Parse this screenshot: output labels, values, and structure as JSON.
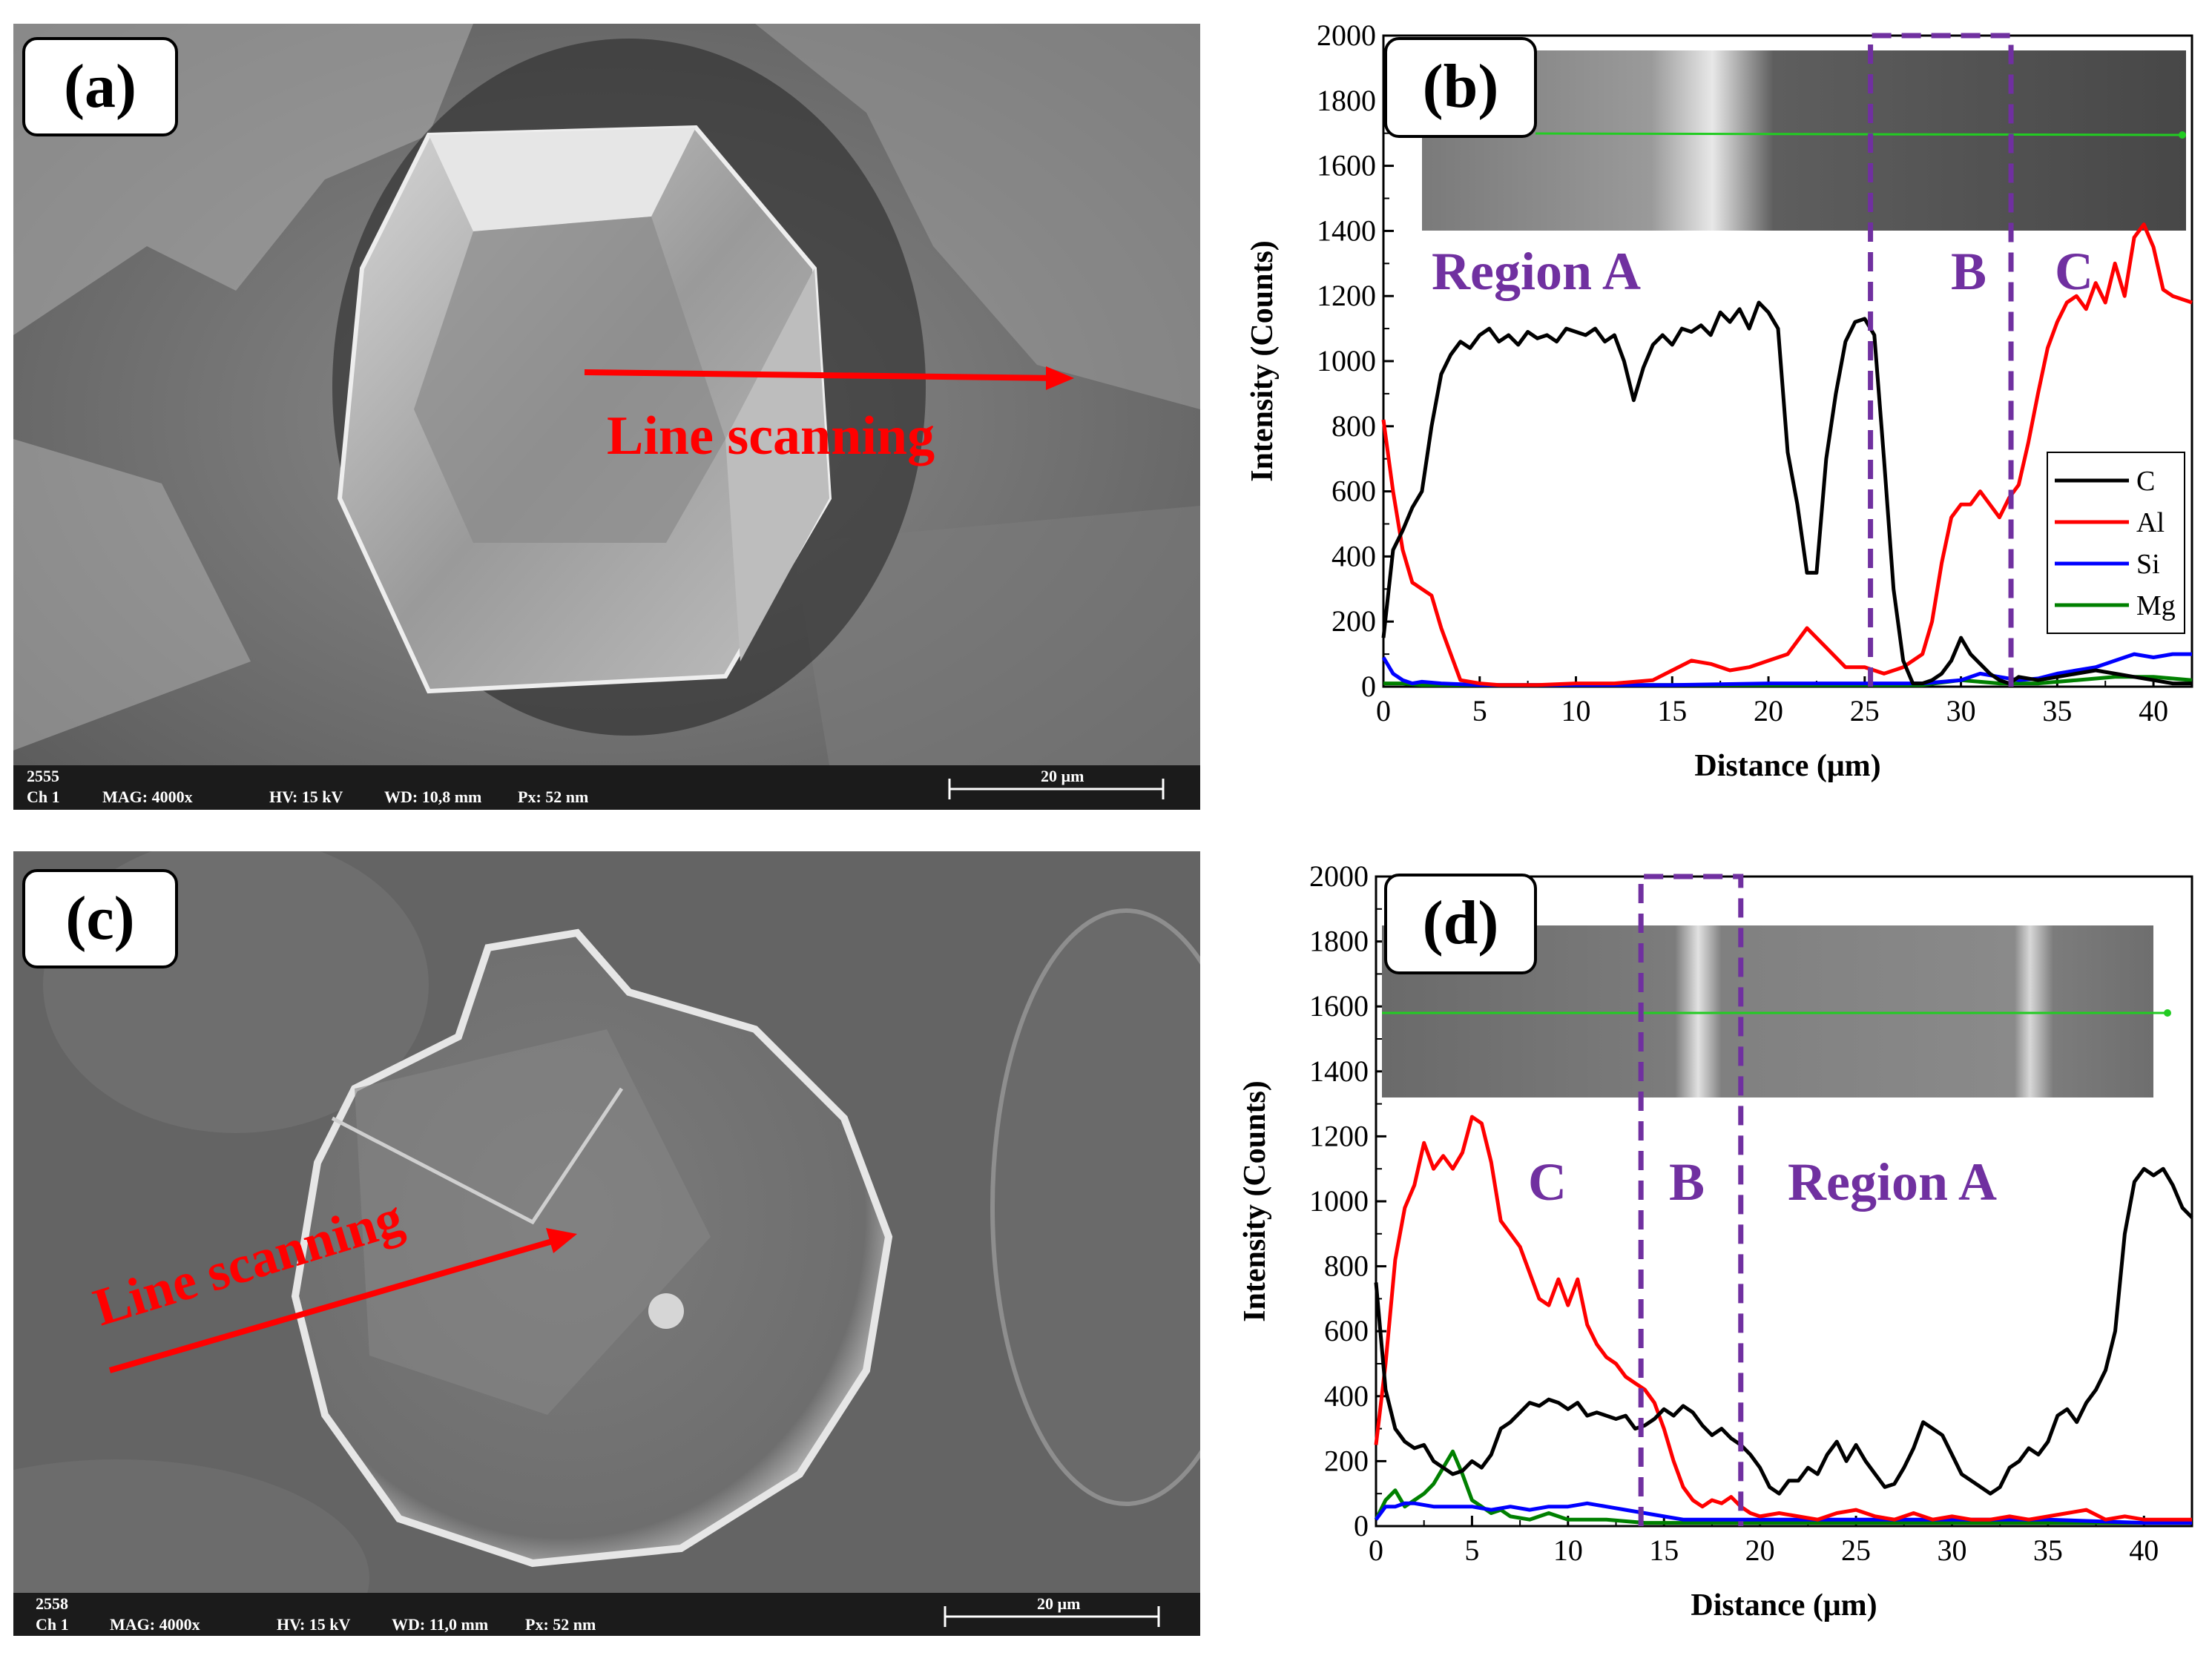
{
  "panels": {
    "a": {
      "label": "(a)",
      "annotation": "Line scanning",
      "info_bar": {
        "id": "2555",
        "channel": "Ch 1",
        "mag": "MAG: 4000x",
        "hv": "HV: 15 kV",
        "wd": "WD: 10,8 mm",
        "px": "Px: 52 nm",
        "scale": "20 µm"
      }
    },
    "b": {
      "label": "(b)",
      "regions": [
        "Region A",
        "B",
        "C"
      ]
    },
    "c": {
      "label": "(c)",
      "annotation": "Line scanning",
      "info_bar": {
        "id": "2558",
        "channel": "Ch 1",
        "mag": "MAG: 4000x",
        "hv": "HV: 15 kV",
        "wd": "WD: 11,0 mm",
        "px": "Px: 52 nm",
        "scale": "20 µm"
      }
    },
    "d": {
      "label": "(d)",
      "regions": [
        "C",
        "B",
        "Region A"
      ]
    }
  },
  "colors": {
    "C": "#000000",
    "Al": "#ff0000",
    "Si": "#0000ff",
    "Mg": "#008000",
    "region": "#7030a0",
    "arrow": "#ff0000"
  },
  "chart_data": [
    {
      "id": "b",
      "type": "line",
      "xlabel": "Distance (μm)",
      "ylabel": "Intensity (Counts)",
      "xlim": [
        0,
        42
      ],
      "ylim": [
        0,
        2000
      ],
      "xticks": [
        0,
        5,
        10,
        15,
        20,
        25,
        30,
        35,
        40
      ],
      "yticks": [
        0,
        200,
        400,
        600,
        800,
        1000,
        1200,
        1400,
        1600,
        1800,
        2000
      ],
      "legend": "right-middle",
      "region_lines": [
        25.3,
        32.6
      ],
      "series": [
        {
          "name": "C",
          "x": [
            0,
            0.5,
            1,
            1.5,
            2,
            2.5,
            3,
            3.5,
            4,
            4.5,
            5,
            5.5,
            6,
            6.5,
            7,
            7.5,
            8,
            8.5,
            9,
            9.5,
            10,
            10.5,
            11,
            11.5,
            12,
            12.5,
            13,
            13.5,
            14,
            14.5,
            15,
            15.5,
            16,
            16.5,
            17,
            17.5,
            18,
            18.5,
            19,
            19.5,
            20,
            20.5,
            21,
            21.5,
            22,
            22.5,
            23,
            23.5,
            24,
            24.5,
            25,
            25.5,
            26,
            26.5,
            27,
            27.5,
            28,
            28.5,
            29,
            29.5,
            30,
            30.5,
            31,
            31.5,
            32,
            32.5,
            33,
            34,
            35,
            36,
            37,
            38,
            39,
            40,
            41,
            42
          ],
          "y": [
            150,
            420,
            480,
            550,
            600,
            800,
            960,
            1020,
            1060,
            1040,
            1080,
            1100,
            1060,
            1080,
            1050,
            1090,
            1070,
            1080,
            1060,
            1100,
            1090,
            1080,
            1100,
            1060,
            1080,
            1000,
            880,
            980,
            1050,
            1080,
            1050,
            1100,
            1090,
            1110,
            1080,
            1150,
            1120,
            1160,
            1100,
            1180,
            1150,
            1100,
            720,
            560,
            350,
            350,
            700,
            900,
            1060,
            1120,
            1130,
            1080,
            700,
            300,
            80,
            10,
            10,
            20,
            40,
            80,
            150,
            100,
            70,
            40,
            20,
            10,
            30,
            20,
            30,
            40,
            50,
            40,
            30,
            20,
            10,
            10
          ]
        },
        {
          "name": "Al",
          "x": [
            0,
            0.5,
            1,
            1.5,
            2,
            2.5,
            3,
            3.5,
            4,
            5,
            6,
            8,
            10,
            12,
            14,
            15,
            16,
            17,
            18,
            19,
            20,
            21,
            22,
            23,
            24,
            25,
            26,
            27,
            28,
            28.5,
            29,
            29.5,
            30,
            30.5,
            31,
            31.5,
            32,
            32.5,
            33,
            33.5,
            34,
            34.5,
            35,
            35.5,
            36,
            36.5,
            37,
            37.5,
            38,
            38.5,
            39,
            39.5,
            40,
            40.5,
            41,
            42
          ],
          "y": [
            820,
            600,
            420,
            320,
            300,
            280,
            180,
            100,
            20,
            10,
            5,
            5,
            10,
            10,
            20,
            50,
            80,
            70,
            50,
            60,
            80,
            100,
            180,
            120,
            60,
            60,
            40,
            60,
            100,
            200,
            380,
            520,
            560,
            560,
            600,
            560,
            520,
            580,
            620,
            750,
            900,
            1040,
            1120,
            1180,
            1200,
            1160,
            1240,
            1180,
            1300,
            1200,
            1380,
            1420,
            1350,
            1220,
            1200,
            1180
          ]
        },
        {
          "name": "Si",
          "x": [
            0,
            0.5,
            1,
            1.5,
            2,
            3,
            5,
            10,
            15,
            20,
            25,
            28,
            30,
            31,
            32,
            33,
            34,
            35,
            36,
            37,
            38,
            39,
            40,
            41,
            42
          ],
          "y": [
            90,
            40,
            20,
            10,
            15,
            10,
            5,
            5,
            5,
            10,
            10,
            10,
            20,
            40,
            30,
            20,
            25,
            40,
            50,
            60,
            80,
            100,
            90,
            100,
            100
          ]
        },
        {
          "name": "Mg",
          "x": [
            0,
            1,
            2,
            5,
            10,
            15,
            20,
            25,
            28,
            30,
            32,
            34,
            36,
            38,
            40,
            42
          ],
          "y": [
            10,
            10,
            5,
            5,
            5,
            5,
            5,
            5,
            5,
            20,
            10,
            10,
            20,
            30,
            30,
            20
          ]
        }
      ]
    },
    {
      "id": "d",
      "type": "line",
      "xlabel": "Distance (μm)",
      "ylabel": "Intensity (Counts)",
      "xlim": [
        0,
        42.5
      ],
      "ylim": [
        0,
        2000
      ],
      "xticks": [
        0,
        5,
        10,
        15,
        20,
        25,
        30,
        35,
        40
      ],
      "yticks": [
        0,
        200,
        400,
        600,
        800,
        1000,
        1200,
        1400,
        1600,
        1800,
        2000
      ],
      "region_lines": [
        13.8,
        19.0
      ],
      "series": [
        {
          "name": "C",
          "x": [
            0,
            0.5,
            1,
            1.5,
            2,
            2.5,
            3,
            3.5,
            4,
            4.5,
            5,
            5.5,
            6,
            6.5,
            7,
            7.5,
            8,
            8.5,
            9,
            9.5,
            10,
            10.5,
            11,
            11.5,
            12,
            12.5,
            13,
            13.5,
            14,
            14.5,
            15,
            15.5,
            16,
            16.5,
            17,
            17.5,
            18,
            18.5,
            19,
            19.5,
            20,
            20.5,
            21,
            21.5,
            22,
            22.5,
            23,
            23.5,
            24,
            24.5,
            25,
            25.5,
            26,
            26.5,
            27,
            27.5,
            28,
            28.5,
            29,
            29.5,
            30,
            30.5,
            31,
            31.5,
            32,
            32.5,
            33,
            33.5,
            34,
            34.5,
            35,
            35.5,
            36,
            36.5,
            37,
            37.5,
            38,
            38.5,
            39,
            39.5,
            40,
            40.5,
            41,
            41.5,
            42,
            42.5
          ],
          "y": [
            750,
            420,
            300,
            260,
            240,
            250,
            200,
            180,
            160,
            170,
            200,
            180,
            220,
            300,
            320,
            350,
            380,
            370,
            390,
            380,
            360,
            380,
            340,
            350,
            340,
            330,
            340,
            300,
            310,
            330,
            360,
            340,
            370,
            350,
            310,
            280,
            300,
            270,
            250,
            220,
            180,
            120,
            100,
            140,
            140,
            180,
            160,
            220,
            260,
            200,
            250,
            200,
            160,
            120,
            130,
            180,
            240,
            320,
            300,
            280,
            220,
            160,
            140,
            120,
            100,
            120,
            180,
            200,
            240,
            220,
            260,
            340,
            360,
            320,
            380,
            420,
            480,
            600,
            900,
            1060,
            1100,
            1080,
            1100,
            1050,
            980,
            950
          ]
        },
        {
          "name": "Al",
          "x": [
            0,
            0.5,
            1,
            1.5,
            2,
            2.5,
            3,
            3.5,
            4,
            4.5,
            5,
            5.5,
            6,
            6.5,
            7,
            7.5,
            8,
            8.5,
            9,
            9.5,
            10,
            10.5,
            11,
            11.5,
            12,
            12.5,
            13,
            13.5,
            14,
            14.5,
            15,
            15.5,
            16,
            16.5,
            17,
            17.5,
            18,
            18.5,
            19,
            19.5,
            20,
            21,
            22,
            23,
            24,
            25,
            26,
            27,
            28,
            29,
            30,
            31,
            32,
            33,
            34,
            35,
            36,
            37,
            38,
            39,
            40,
            41,
            42,
            42.5
          ],
          "y": [
            250,
            500,
            820,
            980,
            1050,
            1180,
            1100,
            1140,
            1100,
            1150,
            1260,
            1240,
            1120,
            940,
            900,
            860,
            780,
            700,
            680,
            760,
            680,
            760,
            620,
            560,
            520,
            500,
            460,
            440,
            420,
            380,
            300,
            200,
            120,
            80,
            60,
            80,
            70,
            90,
            60,
            40,
            30,
            40,
            30,
            20,
            40,
            50,
            30,
            20,
            40,
            20,
            30,
            20,
            20,
            30,
            20,
            30,
            40,
            50,
            20,
            30,
            20,
            20,
            20,
            20
          ]
        },
        {
          "name": "Si",
          "x": [
            0,
            0.5,
            1,
            1.5,
            2,
            3,
            4,
            5,
            6,
            7,
            8,
            9,
            10,
            11,
            12,
            13,
            14,
            15,
            16,
            18,
            20,
            25,
            30,
            35,
            40,
            42.5
          ],
          "y": [
            20,
            60,
            60,
            70,
            70,
            60,
            60,
            60,
            50,
            60,
            50,
            60,
            60,
            70,
            60,
            50,
            40,
            30,
            20,
            20,
            20,
            20,
            20,
            20,
            10,
            10
          ]
        },
        {
          "name": "Mg",
          "x": [
            0,
            0.5,
            1,
            1.5,
            2,
            2.5,
            3,
            3.5,
            4,
            4.5,
            5,
            5.5,
            6,
            6.5,
            7,
            8,
            9,
            10,
            12,
            14,
            16,
            18,
            20,
            25,
            30,
            35,
            40,
            42.5
          ],
          "y": [
            20,
            80,
            110,
            60,
            80,
            100,
            130,
            180,
            230,
            160,
            80,
            60,
            40,
            50,
            30,
            20,
            40,
            20,
            20,
            10,
            10,
            10,
            10,
            10,
            10,
            10,
            10,
            10
          ]
        }
      ]
    }
  ]
}
